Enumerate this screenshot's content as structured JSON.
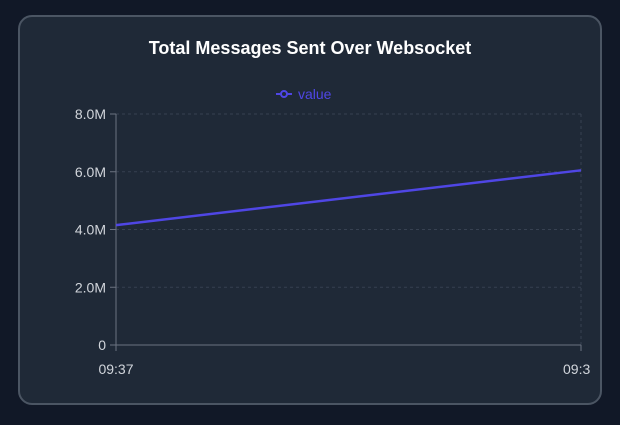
{
  "colors": {
    "background": "#111827",
    "card": "#1f2937",
    "card_border": "#4b5563",
    "series": "#4f46e5",
    "grid": "#374151",
    "axis": "#6b7280",
    "text": "#d1d5db"
  },
  "chart_data": {
    "type": "line",
    "title": "Total Messages Sent Over Websocket",
    "xlabel": "",
    "ylabel": "",
    "ylim": [
      0,
      8000000
    ],
    "y_ticks": [
      0,
      2000000,
      4000000,
      6000000,
      8000000
    ],
    "y_tick_labels": [
      "0",
      "2.0M",
      "4.0M",
      "6.0M",
      "8.0M"
    ],
    "x": [
      "09:37",
      "09:3"
    ],
    "x_tick_labels": [
      "09:37",
      "09:3"
    ],
    "series": [
      {
        "name": "value",
        "values": [
          4150000,
          6050000
        ]
      }
    ],
    "legend": {
      "position": "top-center"
    },
    "grid": true
  }
}
